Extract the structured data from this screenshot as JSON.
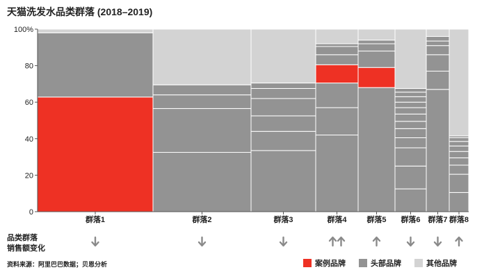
{
  "title": "天猫洗发水品类群落 (2018–2019)",
  "trend_labels": [
    "品类群落",
    "销售额变化"
  ],
  "source": "资料来源：阿里巴巴数据；贝恩分析",
  "colors": {
    "case": "#ee3124",
    "head": "#939393",
    "other": "#d3d3d3",
    "trend": "#8a8a8a"
  },
  "legend": [
    {
      "label": "案例品牌",
      "color": "#ee3124"
    },
    {
      "label": "头部品牌",
      "color": "#939393"
    },
    {
      "label": "其他品牌",
      "color": "#d3d3d3"
    }
  ],
  "chart_data": {
    "type": "bar",
    "subtype": "marimekko",
    "title": "天猫洗发水品类群落 (2018–2019)",
    "ylim": [
      0,
      100
    ],
    "ytick_labels": [
      "0",
      "20",
      "40",
      "60",
      "80",
      "100%"
    ],
    "grid": false,
    "legend_position": "bottom-right",
    "categories": [
      "群落1",
      "群落2",
      "群落3",
      "群落4",
      "群落5",
      "群落6",
      "群落7",
      "群落8"
    ],
    "category_widths": [
      166,
      141,
      93,
      61,
      53,
      45,
      33,
      28
    ],
    "segments": [
      {
        "category": "群落1",
        "stack": [
          {
            "type": "case",
            "value": 62.8
          },
          {
            "type": "head",
            "value": 35.2
          },
          {
            "type": "other",
            "value": 2.0
          }
        ]
      },
      {
        "category": "群落2",
        "stack": [
          {
            "type": "head",
            "value": 32.5
          },
          {
            "type": "head",
            "value": 24.0
          },
          {
            "type": "head",
            "value": 7.5
          },
          {
            "type": "head",
            "value": 5.5
          },
          {
            "type": "other",
            "value": 30.5
          }
        ]
      },
      {
        "category": "群落3",
        "stack": [
          {
            "type": "head",
            "value": 33.5
          },
          {
            "type": "head",
            "value": 10.5
          },
          {
            "type": "head",
            "value": 8.5
          },
          {
            "type": "head",
            "value": 9.5
          },
          {
            "type": "head",
            "value": 5.5
          },
          {
            "type": "head",
            "value": 3.0
          },
          {
            "type": "other",
            "value": 29.5
          }
        ]
      },
      {
        "category": "群落4",
        "stack": [
          {
            "type": "head",
            "value": 42.0
          },
          {
            "type": "head",
            "value": 15.0
          },
          {
            "type": "head",
            "value": 13.5
          },
          {
            "type": "case",
            "value": 10.0
          },
          {
            "type": "head",
            "value": 5.5
          },
          {
            "type": "head",
            "value": 4.5
          },
          {
            "type": "head",
            "value": 1.5
          },
          {
            "type": "other",
            "value": 8.0
          }
        ]
      },
      {
        "category": "群落5",
        "stack": [
          {
            "type": "head",
            "value": 68.0
          },
          {
            "type": "case",
            "value": 11.0
          },
          {
            "type": "head",
            "value": 9.0
          },
          {
            "type": "head",
            "value": 4.0
          },
          {
            "type": "head",
            "value": 2.0
          },
          {
            "type": "other",
            "value": 6.0
          }
        ]
      },
      {
        "category": "群落6",
        "stack": [
          {
            "type": "head",
            "value": 12.5
          },
          {
            "type": "head",
            "value": 12.5
          },
          {
            "type": "head",
            "value": 10.0
          },
          {
            "type": "head",
            "value": 5.5
          },
          {
            "type": "head",
            "value": 5.0
          },
          {
            "type": "head",
            "value": 4.0
          },
          {
            "type": "head",
            "value": 4.0
          },
          {
            "type": "head",
            "value": 3.5
          },
          {
            "type": "head",
            "value": 3.0
          },
          {
            "type": "head",
            "value": 3.0
          },
          {
            "type": "head",
            "value": 2.5
          },
          {
            "type": "head",
            "value": 2.0
          },
          {
            "type": "other",
            "value": 32.5
          }
        ]
      },
      {
        "category": "群落7",
        "stack": [
          {
            "type": "head",
            "value": 67.0
          },
          {
            "type": "head",
            "value": 10.0
          },
          {
            "type": "head",
            "value": 9.0
          },
          {
            "type": "head",
            "value": 5.0
          },
          {
            "type": "head",
            "value": 2.5
          },
          {
            "type": "head",
            "value": 2.5
          },
          {
            "type": "other",
            "value": 4.0
          }
        ]
      },
      {
        "category": "群落8",
        "stack": [
          {
            "type": "head",
            "value": 10.5
          },
          {
            "type": "head",
            "value": 10.0
          },
          {
            "type": "head",
            "value": 5.0
          },
          {
            "type": "head",
            "value": 4.0
          },
          {
            "type": "head",
            "value": 3.5
          },
          {
            "type": "head",
            "value": 3.0
          },
          {
            "type": "head",
            "value": 2.5
          },
          {
            "type": "head",
            "value": 2.0
          },
          {
            "type": "head",
            "value": 1.0
          },
          {
            "type": "other",
            "value": 58.5
          }
        ]
      }
    ],
    "sales_change": [
      "down",
      "down",
      "down",
      "up-up",
      "up",
      "down",
      "down",
      "up"
    ]
  }
}
